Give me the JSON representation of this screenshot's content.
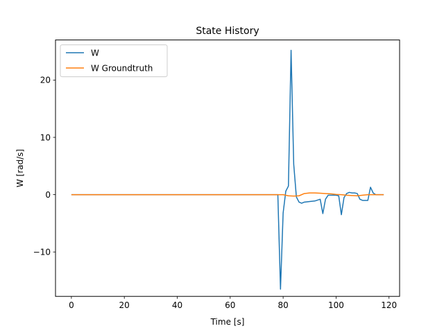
{
  "chart_data": {
    "type": "line",
    "title": "State History",
    "xlabel": "Time [s]",
    "ylabel": "W [rad/s]",
    "xlim": [
      -6,
      124
    ],
    "ylim": [
      -17.75,
      27.0
    ],
    "xticks": [
      0,
      20,
      40,
      60,
      80,
      100,
      120
    ],
    "yticks": [
      -10,
      0,
      10,
      20
    ],
    "grid": false,
    "legend_position": "upper-left",
    "series": [
      {
        "name": "W",
        "color": "#1f77b4",
        "x": [
          0,
          20,
          40,
          60,
          78,
          79,
          80,
          81,
          82,
          83,
          84,
          85,
          86,
          87,
          88,
          90,
          92,
          94,
          95,
          96,
          97,
          98,
          99,
          100,
          101,
          102,
          103,
          104,
          105,
          106,
          107,
          108,
          109,
          110,
          111,
          112,
          113,
          114,
          115,
          116,
          117,
          118
        ],
        "y": [
          0,
          0,
          0,
          0,
          0,
          -16.5,
          -3.2,
          0.6,
          1.5,
          25.2,
          5.3,
          -0.4,
          -1.3,
          -1.5,
          -1.3,
          -1.2,
          -1.1,
          -0.8,
          -3.3,
          -0.8,
          -0.1,
          -0.1,
          -0.1,
          -0.1,
          -0.2,
          -3.5,
          -0.5,
          0.2,
          0.4,
          0.3,
          0.3,
          0.2,
          -0.8,
          -1.0,
          -1.0,
          -1.0,
          1.3,
          0.3,
          0.0,
          0.0,
          0.0,
          0.0
        ]
      },
      {
        "name": "W Groundtruth",
        "color": "#ff7f0e",
        "x": [
          0,
          20,
          40,
          60,
          78,
          80,
          82,
          84,
          86,
          88,
          90,
          92,
          94,
          96,
          98,
          100,
          102,
          104,
          106,
          108,
          110,
          112,
          114,
          116,
          118
        ],
        "y": [
          0,
          0,
          0,
          0,
          0,
          0,
          -0.2,
          -0.25,
          -0.2,
          0.2,
          0.3,
          0.3,
          0.25,
          0.2,
          0.15,
          0.05,
          0.0,
          -0.1,
          -0.15,
          -0.2,
          -0.1,
          0.0,
          0.0,
          0.0,
          0.0
        ]
      }
    ]
  }
}
